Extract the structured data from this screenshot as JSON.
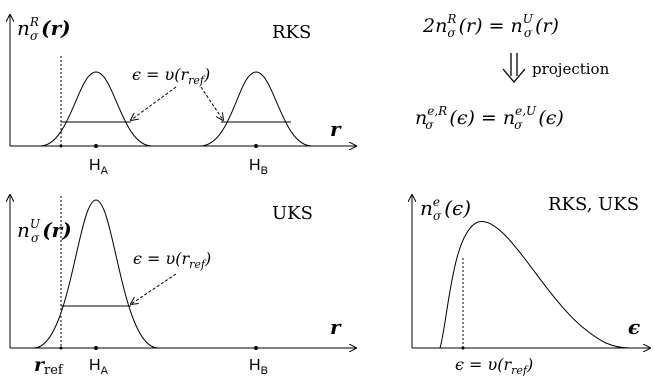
{
  "top_left": {
    "ylabel_sym": "n",
    "ylabel_sup": "R",
    "ylabel_sub": "σ",
    "ylabel_arg": "(r)",
    "tag": "RKS",
    "annotation": "ϵ = υ(r",
    "annotation_sub": "ref",
    "annotation_end": ")",
    "xlabel": "r",
    "tick_a_main": "H",
    "tick_a_sub": "A",
    "tick_b_main": "H",
    "tick_b_sub": "B"
  },
  "bottom_left": {
    "ylabel_sym": "n",
    "ylabel_sup": "U",
    "ylabel_sub": "σ",
    "ylabel_arg": "(r)",
    "tag": "UKS",
    "annotation": "ϵ = υ(r",
    "annotation_sub": "ref",
    "annotation_end": ")",
    "xlabel": "r",
    "ref_main": "r",
    "ref_sub": "ref",
    "tick_a_main": "H",
    "tick_a_sub": "A",
    "tick_b_main": "H",
    "tick_b_sub": "B"
  },
  "top_right": {
    "eq1_left": "2n",
    "eq1_left_sup": "R",
    "eq1_left_sub": "σ",
    "eq1_left_arg": "(r) = n",
    "eq1_right_sup": "U",
    "eq1_right_sub": "σ",
    "eq1_right_arg": "(r)",
    "arrow_label": "projection",
    "eq2_left": "n",
    "eq2_left_sup": "e,R",
    "eq2_left_sub": "σ",
    "eq2_left_arg": "(ϵ) = n",
    "eq2_right_sup": "e,U",
    "eq2_right_sub": "σ",
    "eq2_right_arg": "(ϵ)"
  },
  "bottom_right": {
    "ylabel_sym": "n",
    "ylabel_sup": "e",
    "ylabel_sub": "σ",
    "ylabel_arg": "(ϵ)",
    "tag": "RKS, UKS",
    "xlabel": "ϵ",
    "annotation": "ϵ = υ(r",
    "annotation_sub": "ref",
    "annotation_end": ")"
  }
}
